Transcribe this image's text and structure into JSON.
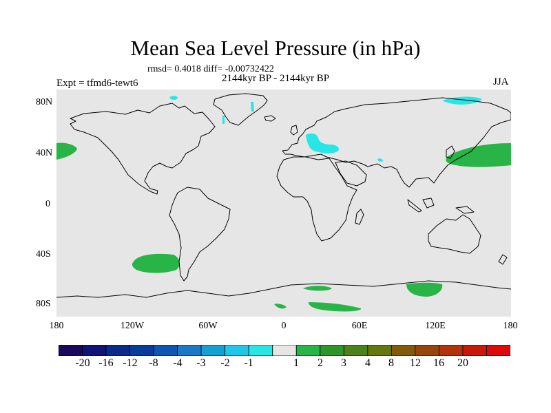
{
  "title": "Mean Sea Level Pressure (in hPa)",
  "stats": "rmsd= 0.4018 diff= -0.00732422",
  "period": "2144kyr BP - 2144kyr BP",
  "experiment": "Expt = tfmd6-tewt6",
  "season": "JJA",
  "map": {
    "background_color": "#e6e6e6",
    "coastline_color": "#000000",
    "lon_range": [
      -180,
      180
    ],
    "lat_range": [
      -90,
      90
    ],
    "lat_ticks": [
      "80N",
      "40N",
      "0",
      "40S",
      "80S"
    ],
    "lon_ticks": [
      "180",
      "120W",
      "60W",
      "0",
      "60E",
      "120E",
      "180"
    ]
  },
  "colorbar": {
    "colors": [
      "#1a0a5c",
      "#101478",
      "#0a2a8c",
      "#0a3c9e",
      "#0f55b4",
      "#1a78c8",
      "#14a0d2",
      "#1ec8e6",
      "#28e6e6",
      "#e6e6e6",
      "#28b446",
      "#2d9628",
      "#4b8219",
      "#64780f",
      "#825a0a",
      "#96460a",
      "#b4320a",
      "#c8190a",
      "#dc0a0a"
    ],
    "labels": [
      "-20",
      "-16",
      "-12",
      "-8",
      "-4",
      "-3",
      "-2",
      "-1",
      "1",
      "2",
      "3",
      "4",
      "8",
      "12",
      "16",
      "20"
    ]
  },
  "anomaly_colors": {
    "positive": "#28b446",
    "negative": "#28e6e6"
  }
}
